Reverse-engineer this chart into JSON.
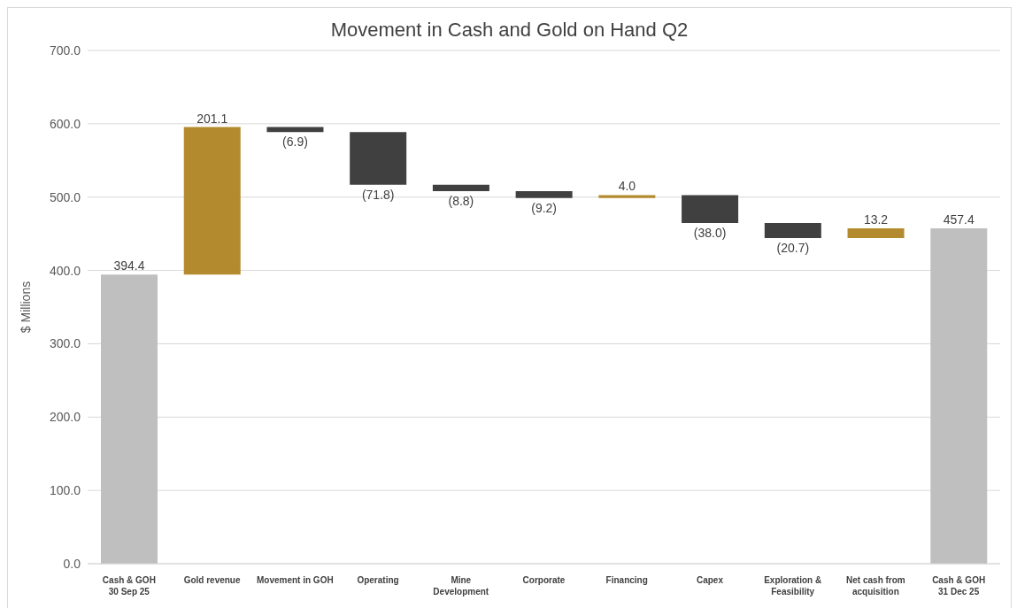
{
  "chart_data": {
    "type": "bar",
    "title": "Movement in Cash and Gold on Hand Q2",
    "ylabel": "$ Millions",
    "categories": [
      "Cash & GOH\n30 Sep 25",
      "Gold revenue",
      "Movement in GOH",
      "Operating",
      "Mine\nDevelopment",
      "Corporate",
      "Financing",
      "Capex",
      "Exploration &\nFeasibility",
      "Net cash from\nacquisition",
      "Cash & GOH\n31 Dec 25"
    ],
    "values": [
      394.4,
      201.1,
      -6.9,
      -71.8,
      -8.8,
      -9.2,
      4.0,
      -38.0,
      -20.7,
      13.2,
      457.4
    ],
    "base": [
      0,
      394.4,
      595.5,
      588.6,
      516.8,
      508.0,
      498.8,
      502.8,
      464.8,
      444.1,
      0
    ],
    "colors": [
      "#bfbfbf",
      "#b38b2e",
      "#404040",
      "#404040",
      "#404040",
      "#404040",
      "#b38b2e",
      "#404040",
      "#404040",
      "#b38b2e",
      "#bfbfbf"
    ],
    "value_labels": [
      "394.4",
      "201.1",
      "(6.9)",
      "(71.8)",
      "(8.8)",
      "(9.2)",
      "4.0",
      "(38.0)",
      "(20.7)",
      "13.2",
      "457.4"
    ],
    "ylim": [
      0,
      700
    ],
    "yticks": [
      {
        "value": 0,
        "label": "0.0"
      },
      {
        "value": 100,
        "label": "100.0"
      },
      {
        "value": 200,
        "label": "200.0"
      },
      {
        "value": 300,
        "label": "300.0"
      },
      {
        "value": 400,
        "label": "400.0"
      },
      {
        "value": 500,
        "label": "500.0"
      },
      {
        "value": 600,
        "label": "600.0"
      },
      {
        "value": 700,
        "label": "700.0"
      }
    ],
    "grid": "y"
  }
}
